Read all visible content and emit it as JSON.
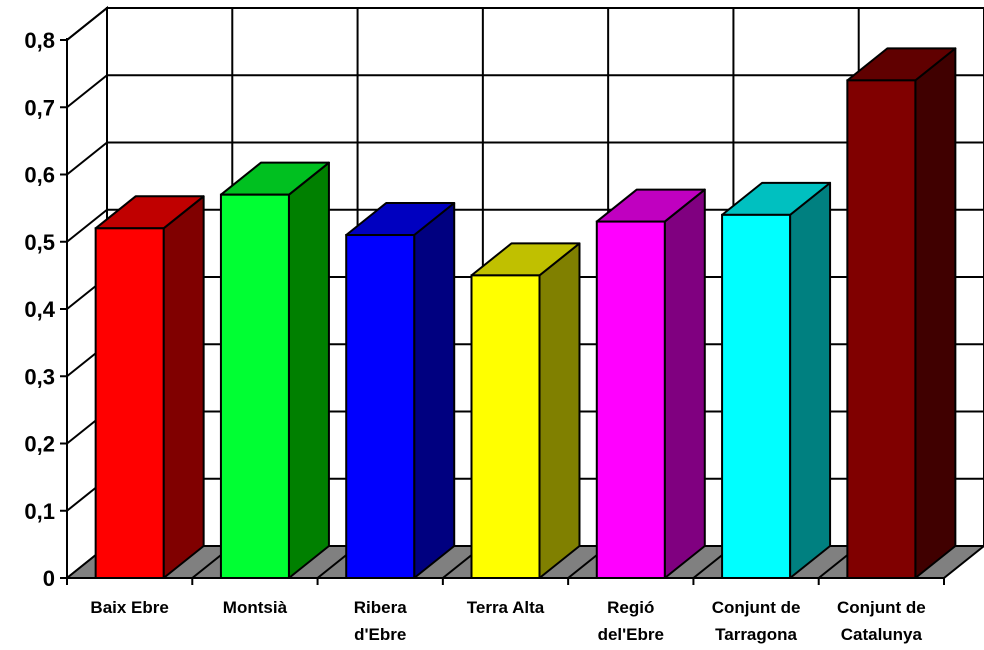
{
  "chart_data": {
    "type": "bar",
    "title": "",
    "xlabel": "",
    "ylabel": "",
    "ylim": [
      0,
      0.8
    ],
    "yticks": [
      {
        "value": 0,
        "label": "0"
      },
      {
        "value": 0.1,
        "label": "0,1"
      },
      {
        "value": 0.2,
        "label": "0,2"
      },
      {
        "value": 0.3,
        "label": "0,3"
      },
      {
        "value": 0.4,
        "label": "0,4"
      },
      {
        "value": 0.5,
        "label": "0,5"
      },
      {
        "value": 0.6,
        "label": "0,6"
      },
      {
        "value": 0.7,
        "label": "0,7"
      },
      {
        "value": 0.8,
        "label": "0,8"
      }
    ],
    "grid": true,
    "three_d": true,
    "bars": [
      {
        "label_lines": [
          "Baix Ebre"
        ],
        "value": 0.52,
        "color": "#ff0000",
        "side_color": "#800000",
        "top_color": "#c00000"
      },
      {
        "label_lines": [
          "Montsià"
        ],
        "value": 0.57,
        "color": "#00ff33",
        "side_color": "#008000",
        "top_color": "#00c020"
      },
      {
        "label_lines": [
          "Ribera",
          "d'Ebre"
        ],
        "value": 0.51,
        "color": "#0000ff",
        "side_color": "#000080",
        "top_color": "#0000c0"
      },
      {
        "label_lines": [
          "Terra Alta"
        ],
        "value": 0.45,
        "color": "#ffff00",
        "side_color": "#808000",
        "top_color": "#c0c000"
      },
      {
        "label_lines": [
          "Regió",
          "del'Ebre"
        ],
        "value": 0.53,
        "color": "#ff00ff",
        "side_color": "#800080",
        "top_color": "#c000c0"
      },
      {
        "label_lines": [
          "Conjunt de",
          "Tarragona"
        ],
        "value": 0.54,
        "color": "#00ffff",
        "side_color": "#008080",
        "top_color": "#00c0c0"
      },
      {
        "label_lines": [
          "Conjunt de",
          "Catalunya"
        ],
        "value": 0.74,
        "color": "#800000",
        "side_color": "#400000",
        "top_color": "#600000"
      }
    ]
  }
}
